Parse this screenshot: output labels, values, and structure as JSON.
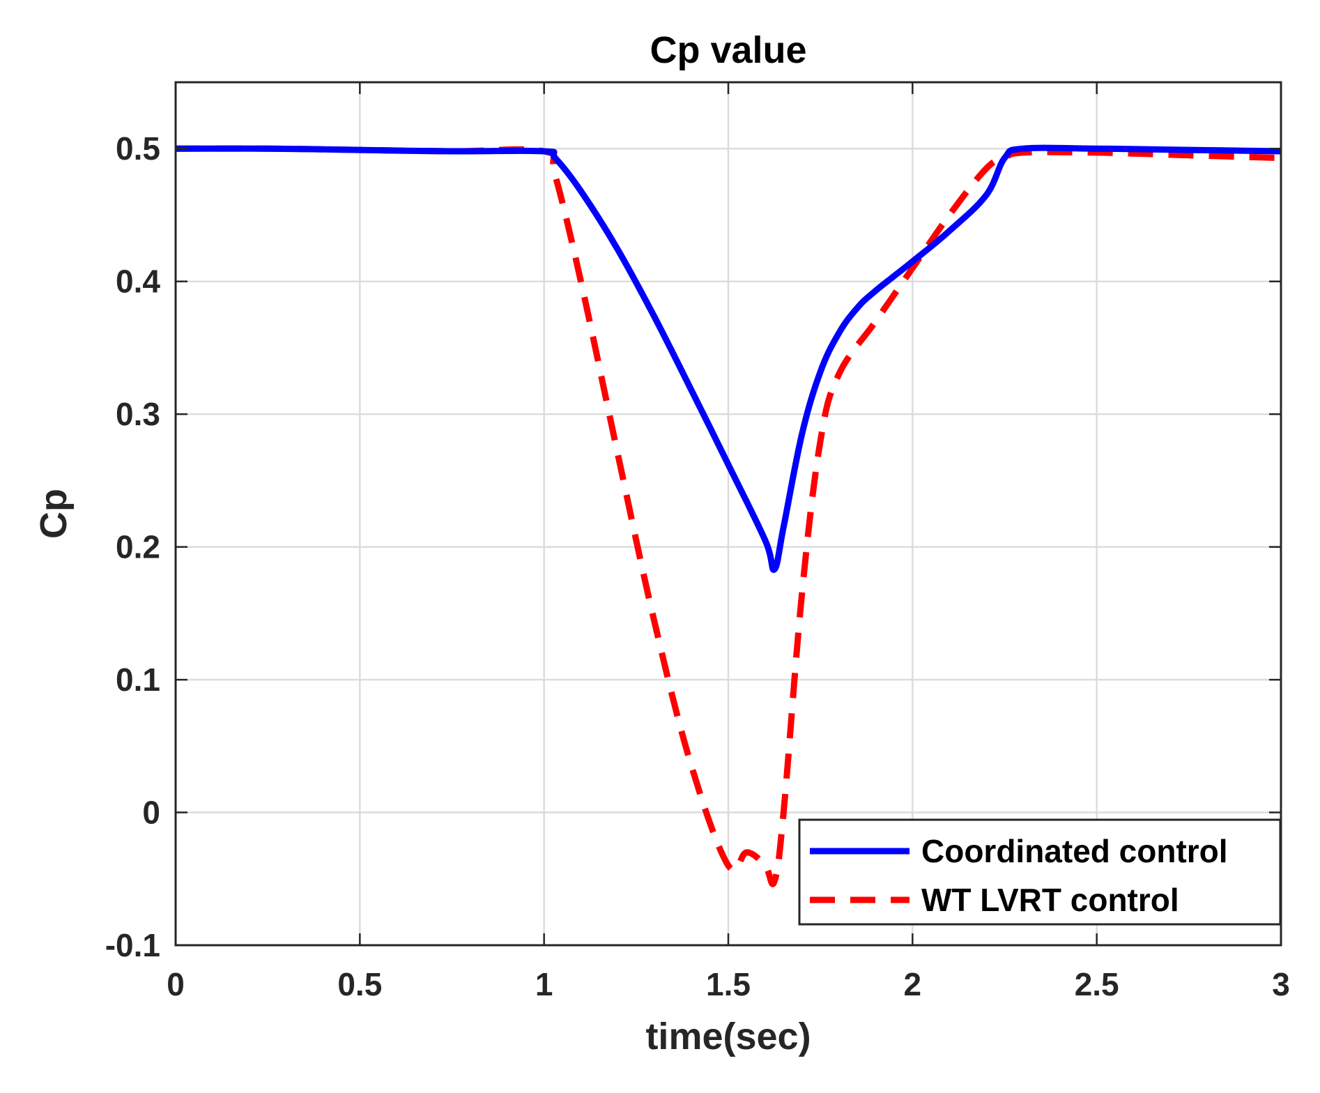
{
  "chart_data": {
    "type": "line",
    "title": "Cp value",
    "xlabel": "time(sec)",
    "ylabel": "Cp",
    "xlim": [
      0,
      3
    ],
    "ylim": [
      -0.1,
      0.55
    ],
    "grid": true,
    "x_ticks": [
      0,
      0.5,
      1,
      1.5,
      2,
      2.5,
      3
    ],
    "x_tick_labels": [
      "0",
      "0.5",
      "1",
      "1.5",
      "2",
      "2.5",
      "3"
    ],
    "y_ticks": [
      -0.1,
      0,
      0.1,
      0.2,
      0.3,
      0.4,
      0.5
    ],
    "y_tick_labels": [
      "-0.1",
      "0",
      "0.1",
      "0.2",
      "0.3",
      "0.4",
      "0.5"
    ],
    "legend_position": "bottom-right",
    "series": [
      {
        "name": "Coordinated control",
        "color": "#0000ff",
        "style": "solid",
        "x": [
          0,
          0.25,
          0.5,
          0.75,
          1.0,
          1.03,
          1.1,
          1.2,
          1.3,
          1.4,
          1.5,
          1.6,
          1.625,
          1.65,
          1.7,
          1.75,
          1.8,
          1.85,
          1.9,
          2.0,
          2.1,
          2.2,
          2.25,
          2.3,
          2.5,
          2.75,
          3.0
        ],
        "y": [
          0.5,
          0.5,
          0.499,
          0.498,
          0.498,
          0.493,
          0.468,
          0.424,
          0.373,
          0.318,
          0.262,
          0.205,
          0.183,
          0.215,
          0.285,
          0.332,
          0.361,
          0.38,
          0.393,
          0.415,
          0.438,
          0.465,
          0.493,
          0.5,
          0.5,
          0.499,
          0.498
        ]
      },
      {
        "name": "WT LVRT control",
        "color": "#ff0000",
        "style": "dashed",
        "x": [
          0,
          0.25,
          0.5,
          0.75,
          1.0,
          1.03,
          1.1,
          1.2,
          1.3,
          1.4,
          1.5,
          1.55,
          1.6,
          1.625,
          1.65,
          1.7,
          1.75,
          1.8,
          1.9,
          2.0,
          2.1,
          2.2,
          2.25,
          2.3,
          2.5,
          2.75,
          3.0
        ],
        "y": [
          0.5,
          0.5,
          0.499,
          0.498,
          0.498,
          0.48,
          0.4,
          0.27,
          0.143,
          0.035,
          -0.04,
          -0.03,
          -0.04,
          -0.052,
          0.0,
          0.165,
          0.28,
          0.33,
          0.37,
          0.41,
          0.45,
          0.485,
          0.493,
          0.497,
          0.497,
          0.495,
          0.493
        ]
      }
    ]
  }
}
